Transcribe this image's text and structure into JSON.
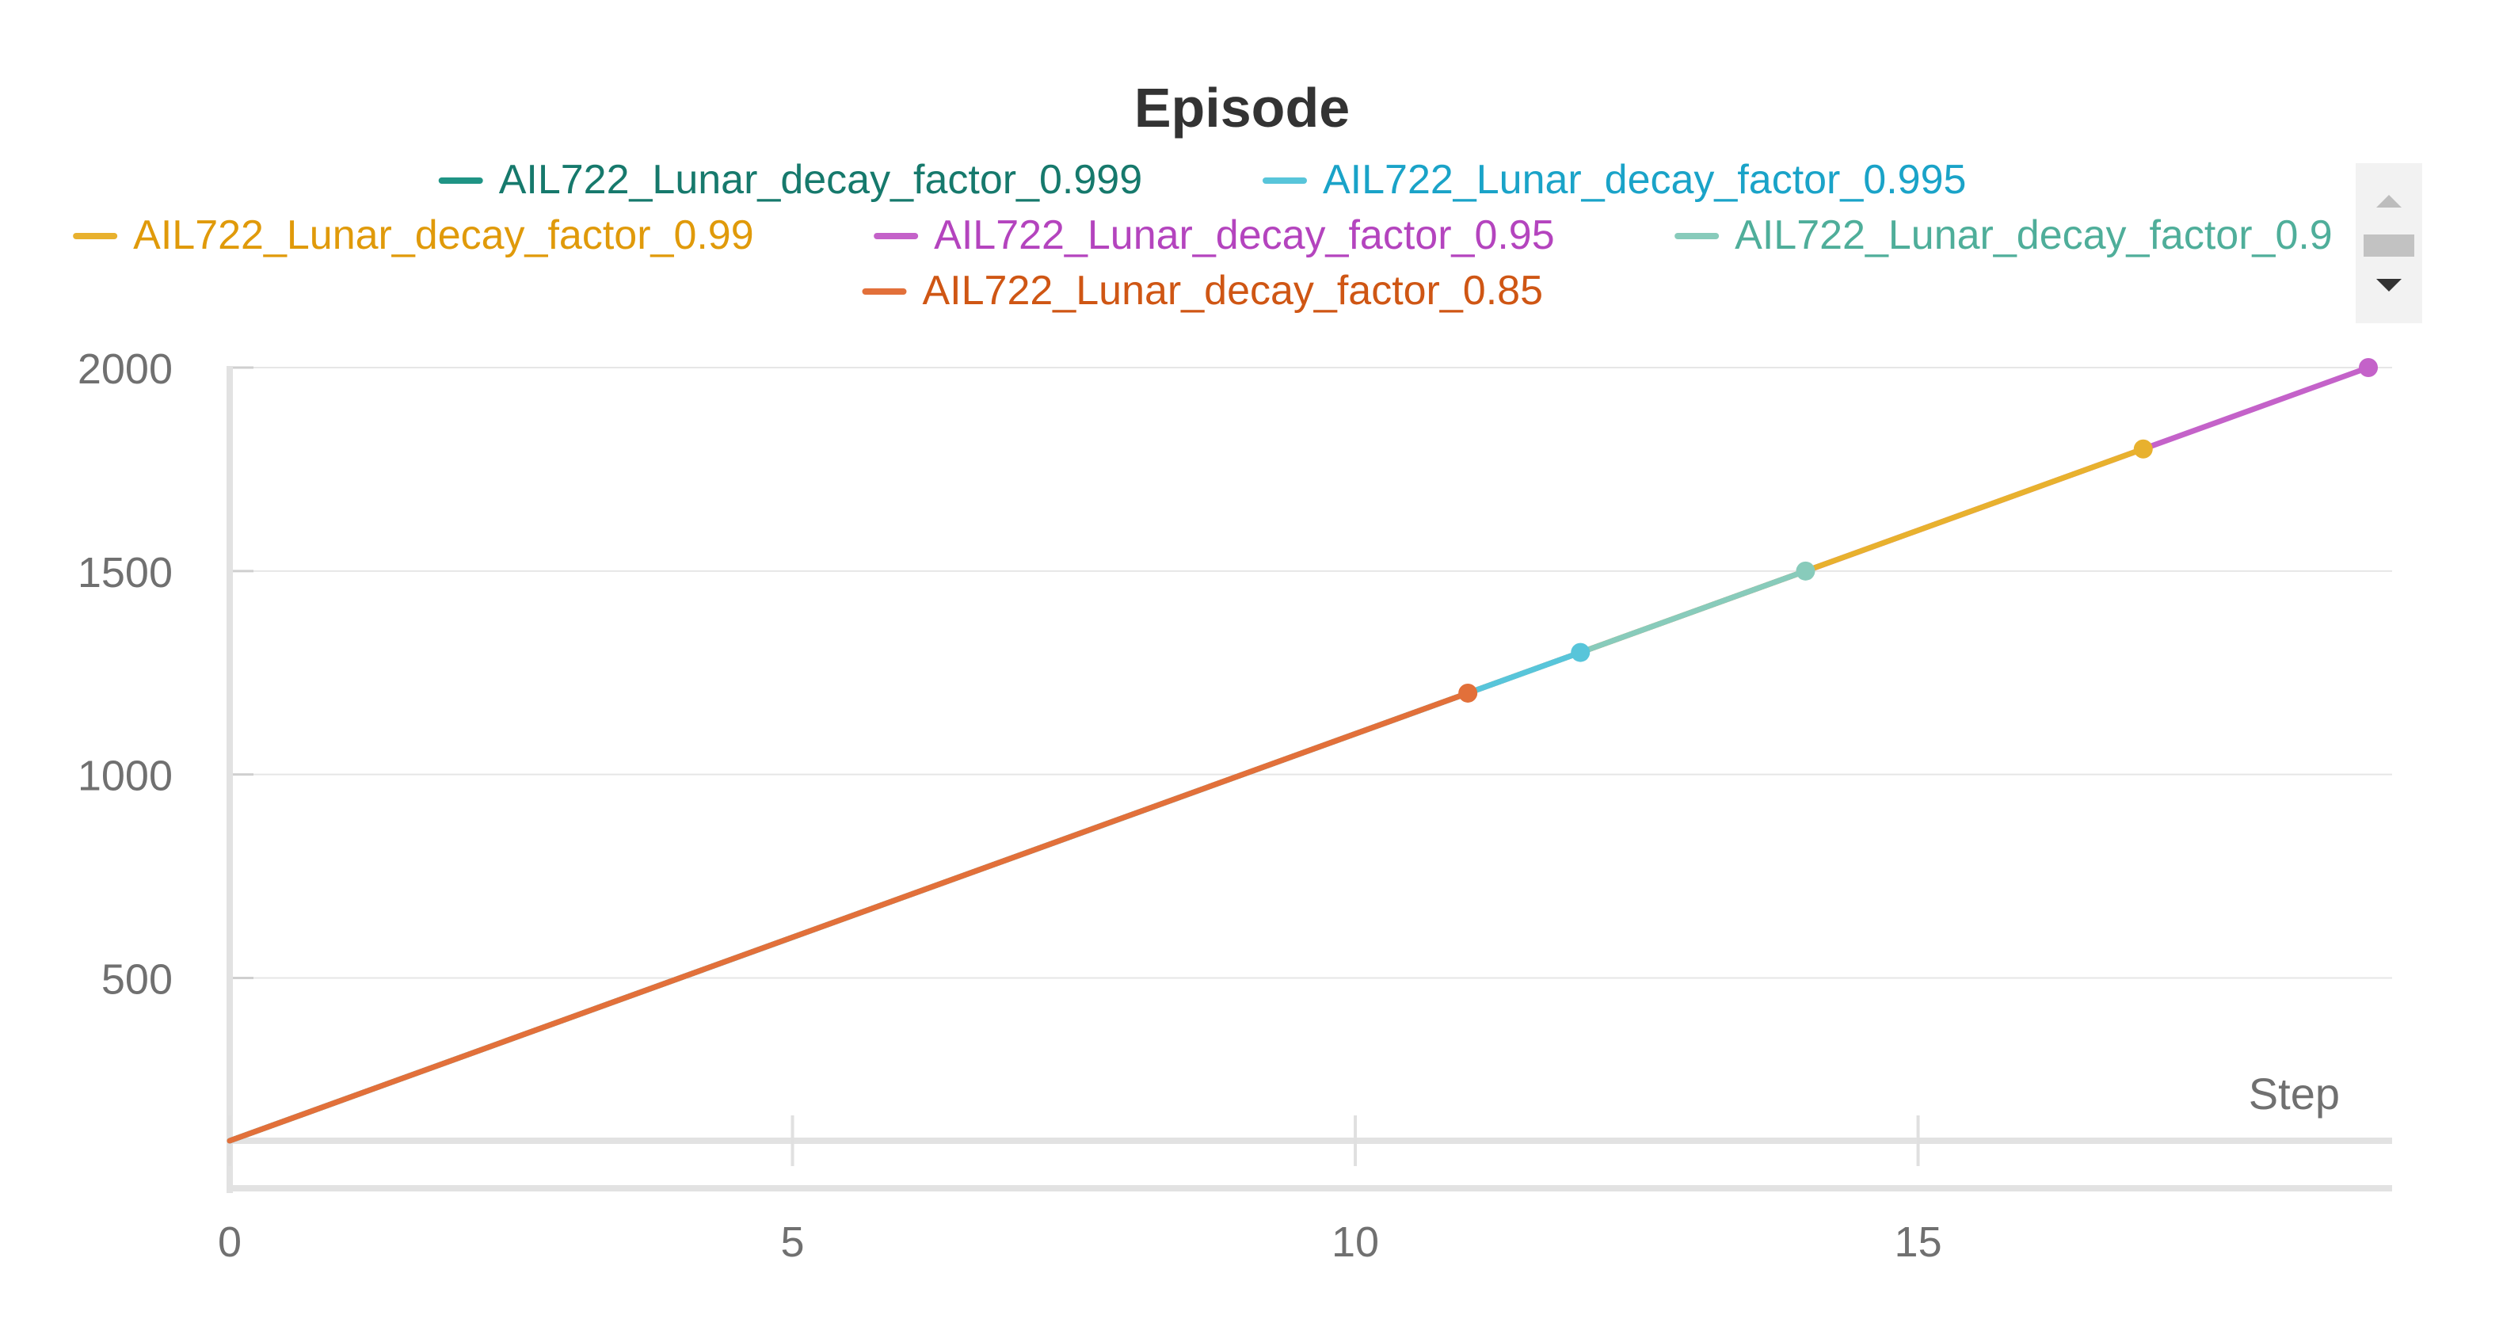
{
  "chart_data": {
    "type": "line",
    "title": "Episode",
    "xlabel": "Step",
    "ylabel": "",
    "xlim": [
      0,
      19
    ],
    "ylim": [
      100,
      2000
    ],
    "xticks": [
      "0",
      "5",
      "10",
      "15"
    ],
    "yticks": [
      "500",
      "1000",
      "1500",
      "2000"
    ],
    "grid": true,
    "legend_position": "top",
    "series": [
      {
        "name": "AIL722_Lunar_decay_factor_0.999",
        "color": "#1f9485",
        "x": [],
        "y": []
      },
      {
        "name": "AIL722_Lunar_decay_factor_0.995",
        "color": "#58c5da",
        "x": [
          0,
          12
        ],
        "y": [
          100,
          1300
        ]
      },
      {
        "name": "AIL722_Lunar_decay_factor_0.99",
        "color": "#e8b12e",
        "x": [
          0,
          17
        ],
        "y": [
          100,
          1800
        ]
      },
      {
        "name": "AIL722_Lunar_decay_factor_0.95",
        "color": "#c462c9",
        "x": [
          0,
          19
        ],
        "y": [
          100,
          2000
        ]
      },
      {
        "name": "AIL722_Lunar_decay_factor_0.9",
        "color": "#88cbbb",
        "x": [
          0,
          14
        ],
        "y": [
          100,
          1500
        ]
      },
      {
        "name": "AIL722_Lunar_decay_factor_0.85",
        "color": "#e2703a",
        "x": [
          0,
          11
        ],
        "y": [
          100,
          1200
        ]
      }
    ],
    "legend_text_colors": {
      "AIL722_Lunar_decay_factor_0.999": "#16796c",
      "AIL722_Lunar_decay_factor_0.995": "#1aa3c8",
      "AIL722_Lunar_decay_factor_0.99": "#e09a0a",
      "AIL722_Lunar_decay_factor_0.95": "#b444be",
      "AIL722_Lunar_decay_factor_0.9": "#4fae9a",
      "AIL722_Lunar_decay_factor_0.85": "#cf5614"
    }
  },
  "legend_scroll": {
    "up_icon": "triangle-up-icon",
    "down_icon": "triangle-down-icon"
  }
}
